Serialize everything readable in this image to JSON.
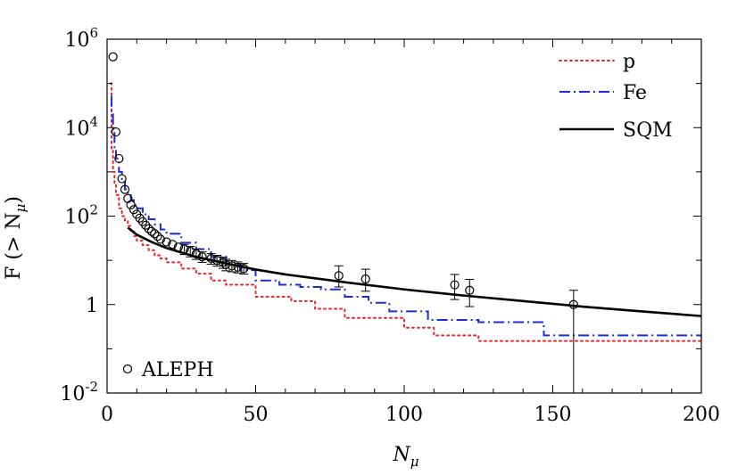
{
  "chart_data": {
    "type": "line",
    "xlabel_main": "N",
    "xlabel_sub": "μ",
    "ylabel_pre": "F (> N",
    "ylabel_sub": "μ",
    "ylabel_post": ")",
    "xlim": [
      0,
      200
    ],
    "ylim_log10": [
      -2,
      6
    ],
    "yscale": "log",
    "x_ticks": [
      0,
      50,
      100,
      150,
      200
    ],
    "x_tick_labels": [
      "0",
      "50",
      "100",
      "150",
      "200"
    ],
    "y_ticks_exp": [
      -2,
      0,
      2,
      4,
      6
    ],
    "y_tick_labels": [
      {
        "base": "10",
        "exp": "-2"
      },
      {
        "base": "1",
        "exp": ""
      },
      {
        "base": "10",
        "exp": "2"
      },
      {
        "base": "10",
        "exp": "4"
      },
      {
        "base": "10",
        "exp": "6"
      }
    ],
    "legend": {
      "position": "top-right",
      "entries": [
        {
          "label": "p",
          "color": "#e8262a",
          "style": "dotted"
        },
        {
          "label": "Fe",
          "color": "#1a2ddb",
          "style": "dash-dot"
        },
        {
          "label": "SQM",
          "color": "#000000",
          "style": "solid"
        }
      ],
      "data_label": "ALEPH"
    },
    "series": [
      {
        "name": "p",
        "color": "#e8262a",
        "style": "dotted",
        "step": true,
        "x": [
          1.2,
          1.5,
          2,
          2.5,
          3,
          4,
          5,
          6,
          7,
          8,
          9,
          10,
          12,
          14,
          16,
          18,
          20,
          25,
          30,
          35,
          40,
          50,
          62,
          70,
          80,
          100,
          110,
          125,
          200
        ],
        "y": [
          100000,
          3000,
          1000,
          500,
          300,
          150,
          100,
          80,
          60,
          45,
          35,
          28,
          22,
          17,
          13,
          11,
          9,
          6.5,
          5,
          3.5,
          2.8,
          1.5,
          1.2,
          0.8,
          0.5,
          0.3,
          0.2,
          0.15,
          0.15
        ]
      },
      {
        "name": "Fe",
        "color": "#1a2ddb",
        "style": "dash-dot",
        "step": true,
        "x": [
          1.2,
          1.5,
          2,
          2.5,
          3,
          4,
          5,
          6,
          7,
          8,
          9,
          10,
          12,
          14,
          16,
          18,
          20,
          25,
          30,
          35,
          40,
          45,
          50,
          58,
          65,
          72,
          80,
          88,
          95,
          108,
          125,
          147,
          200
        ],
        "y": [
          50000,
          20000,
          8000,
          3000,
          2000,
          1000,
          600,
          400,
          300,
          230,
          180,
          150,
          110,
          85,
          65,
          50,
          40,
          25,
          18,
          12,
          8,
          6,
          3.5,
          2.8,
          2.5,
          2.2,
          1.5,
          1.1,
          0.7,
          0.45,
          0.4,
          0.2,
          0.18
        ]
      },
      {
        "name": "SQM",
        "color": "#000000",
        "style": "solid",
        "step": false,
        "x": [
          7,
          10,
          15,
          20,
          25,
          30,
          40,
          50,
          60,
          80,
          100,
          120,
          140,
          160,
          180,
          200
        ],
        "y": [
          55,
          38,
          26,
          19,
          15,
          12,
          8.5,
          6.2,
          4.8,
          3.2,
          2.2,
          1.6,
          1.2,
          0.9,
          0.7,
          0.55
        ]
      }
    ],
    "data_points": {
      "name": "ALEPH",
      "x": [
        2,
        3,
        4,
        5,
        6,
        7,
        8,
        9,
        10,
        11,
        12,
        13,
        14,
        15,
        16,
        17,
        18,
        20,
        22,
        24,
        26,
        28,
        30,
        32,
        35,
        37,
        39,
        40,
        42,
        44,
        46,
        78,
        87,
        117,
        122,
        157
      ],
      "y": [
        400000,
        8000,
        2000,
        700,
        400,
        250,
        180,
        140,
        110,
        90,
        75,
        62,
        52,
        45,
        40,
        35,
        30,
        26,
        23,
        20,
        18,
        16,
        14,
        12,
        11,
        10,
        9,
        8,
        7.5,
        7,
        6.5,
        4.5,
        3.8,
        2.8,
        2.1,
        1.0
      ],
      "err_low": [
        0,
        0,
        0,
        0,
        0,
        0,
        0,
        0,
        0,
        0,
        0,
        0,
        0,
        0,
        0,
        0,
        0,
        0,
        0,
        0,
        4.5,
        4,
        3.5,
        3,
        2.8,
        2.6,
        2.4,
        2.2,
        2,
        1.8,
        1.6,
        2,
        1.8,
        1.5,
        1.2,
        0.99
      ],
      "err_high": [
        0,
        0,
        0,
        0,
        0,
        0,
        0,
        0,
        0,
        0,
        0,
        0,
        0,
        0,
        0,
        0,
        0,
        0,
        0,
        0,
        5,
        4.5,
        4,
        3.5,
        3.2,
        3,
        2.8,
        2.6,
        2.4,
        2.2,
        2,
        3,
        2.5,
        2,
        1.6,
        1.1
      ]
    }
  }
}
